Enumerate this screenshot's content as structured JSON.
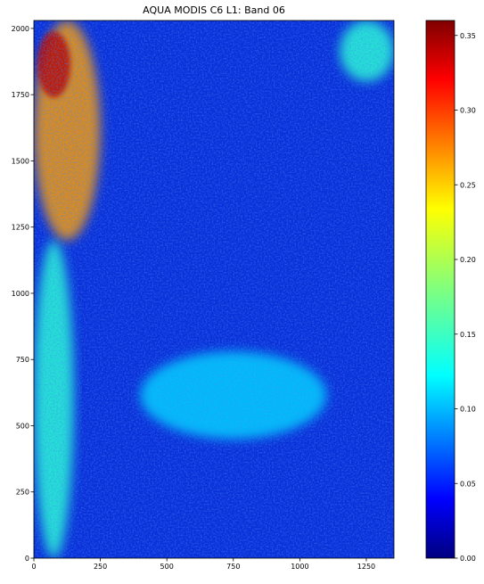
{
  "chart_data": {
    "type": "heatmap",
    "title": "AQUA MODIS C6 L1: Band 06",
    "xlabel": "",
    "ylabel": "",
    "xlim": [
      0,
      1354
    ],
    "ylim": [
      0,
      2030
    ],
    "x_ticks": [
      "0",
      "250",
      "500",
      "750",
      "1000",
      "1250"
    ],
    "y_ticks": [
      "0",
      "250",
      "500",
      "750",
      "1000",
      "1250",
      "1500",
      "1750",
      "2000"
    ],
    "colormap": "jet",
    "colorbar": {
      "min": 0.0,
      "max": 0.36,
      "ticks": [
        "0.00",
        "0.05",
        "0.10",
        "0.15",
        "0.20",
        "0.25",
        "0.30",
        "0.35"
      ]
    },
    "features": [
      {
        "region": "upper-left edge",
        "x": [
          0,
          250
        ],
        "y": [
          1200,
          2030
        ],
        "value_range": [
          0.18,
          0.34
        ]
      },
      {
        "region": "left edge",
        "x": [
          0,
          150
        ],
        "y": [
          0,
          1200
        ],
        "value_range": [
          0.1,
          0.2
        ]
      },
      {
        "region": "cloud band",
        "x": [
          400,
          1100
        ],
        "y": [
          450,
          780
        ],
        "value_range": [
          0.1,
          0.14
        ]
      },
      {
        "region": "upper-right corner",
        "x": [
          1150,
          1354
        ],
        "y": [
          1800,
          2030
        ],
        "value_range": [
          0.12,
          0.18
        ]
      },
      {
        "region": "background ocean",
        "x": [
          0,
          1354
        ],
        "y": [
          0,
          2030
        ],
        "value_range": [
          0.0,
          0.08
        ]
      }
    ]
  }
}
